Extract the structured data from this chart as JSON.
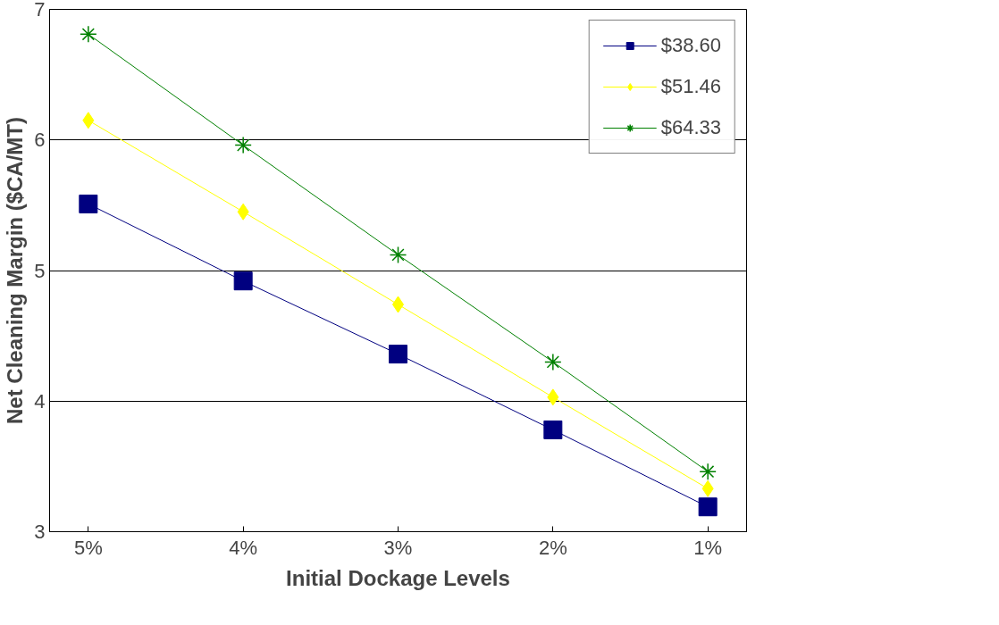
{
  "chart_data": {
    "type": "line",
    "xlabel": "Initial Dockage Levels",
    "ylabel": "Net Cleaning Margin ($CA/MT)",
    "categories": [
      "5%",
      "4%",
      "3%",
      "2%",
      "1%"
    ],
    "series": [
      {
        "name": "$38.60",
        "color": "#000080",
        "marker": "square",
        "values": [
          5.51,
          4.92,
          4.36,
          3.78,
          3.19
        ]
      },
      {
        "name": "$51.46",
        "color": "#ffff00",
        "marker": "diamond",
        "values": [
          6.15,
          5.45,
          4.74,
          4.03,
          3.33
        ]
      },
      {
        "name": "$64.33",
        "color": "#008000",
        "marker": "cross",
        "values": [
          6.81,
          5.96,
          5.12,
          4.3,
          3.46
        ]
      }
    ],
    "ylim": [
      3,
      7
    ],
    "yticks": [
      3,
      4,
      5,
      6,
      7
    ],
    "grid": "y",
    "legend": "top right",
    "line_style": "solid"
  }
}
